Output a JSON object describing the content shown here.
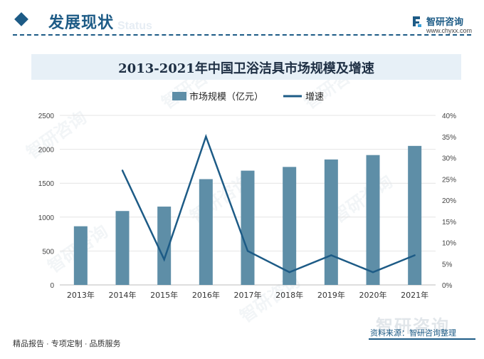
{
  "header": {
    "section_title": "发展现状",
    "ghost_text": "Status",
    "brand_name": "智研咨询",
    "brand_url": "www.chyxx.com"
  },
  "watermark_text": "智研咨询",
  "chart_data": {
    "type": "bar+line",
    "title": "2013-2021年中国卫浴洁具市场规模及增速",
    "categories": [
      "2013年",
      "2014年",
      "2015年",
      "2016年",
      "2017年",
      "2018年",
      "2019年",
      "2020年",
      "2021年"
    ],
    "series": [
      {
        "name": "市场规模（亿元）",
        "type": "bar",
        "axis": "left",
        "color": "#5e8ea7",
        "values": [
          865,
          1090,
          1155,
          1560,
          1685,
          1740,
          1850,
          1915,
          2050
        ]
      },
      {
        "name": "增速",
        "type": "line",
        "axis": "right",
        "color": "#1d5b86",
        "values": [
          null,
          27,
          6,
          35,
          8,
          3,
          7,
          3,
          7
        ]
      }
    ],
    "y_left": {
      "min": 0,
      "max": 2500,
      "ticks": [
        0,
        500,
        1000,
        1500,
        2000,
        2500
      ]
    },
    "y_right": {
      "min": 0,
      "max": 40,
      "unit": "%",
      "ticks": [
        0,
        5,
        10,
        15,
        20,
        25,
        30,
        35,
        40
      ]
    },
    "legend_position": "top-center",
    "grid": true
  },
  "footer": {
    "left_text": "精品报告 · 专项定制 · 品质服务",
    "right_text": "资料来源：智研咨询整理",
    "watermark": "智研咨询"
  }
}
